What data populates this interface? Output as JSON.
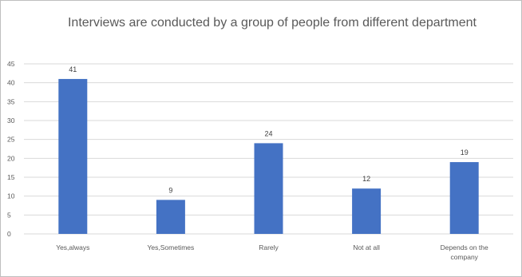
{
  "chart_data": {
    "type": "bar",
    "title": "Interviews  are conducted by a group of people from different department",
    "categories": [
      "Yes,always",
      "Yes,Sometimes",
      "Rarely",
      "Not at all",
      "Depends on the company"
    ],
    "values": [
      41,
      9,
      24,
      12,
      19
    ],
    "data_labels": [
      "41",
      "9",
      "24",
      "12",
      "19"
    ],
    "yticks": [
      "0",
      "5",
      "10",
      "15",
      "20",
      "25",
      "30",
      "35",
      "40",
      "45"
    ],
    "ylim": [
      0,
      45
    ],
    "grid": true,
    "legend": "none",
    "colors": {
      "bar": "#4472c4",
      "grid": "#d9d9d9",
      "text": "#595959"
    }
  }
}
